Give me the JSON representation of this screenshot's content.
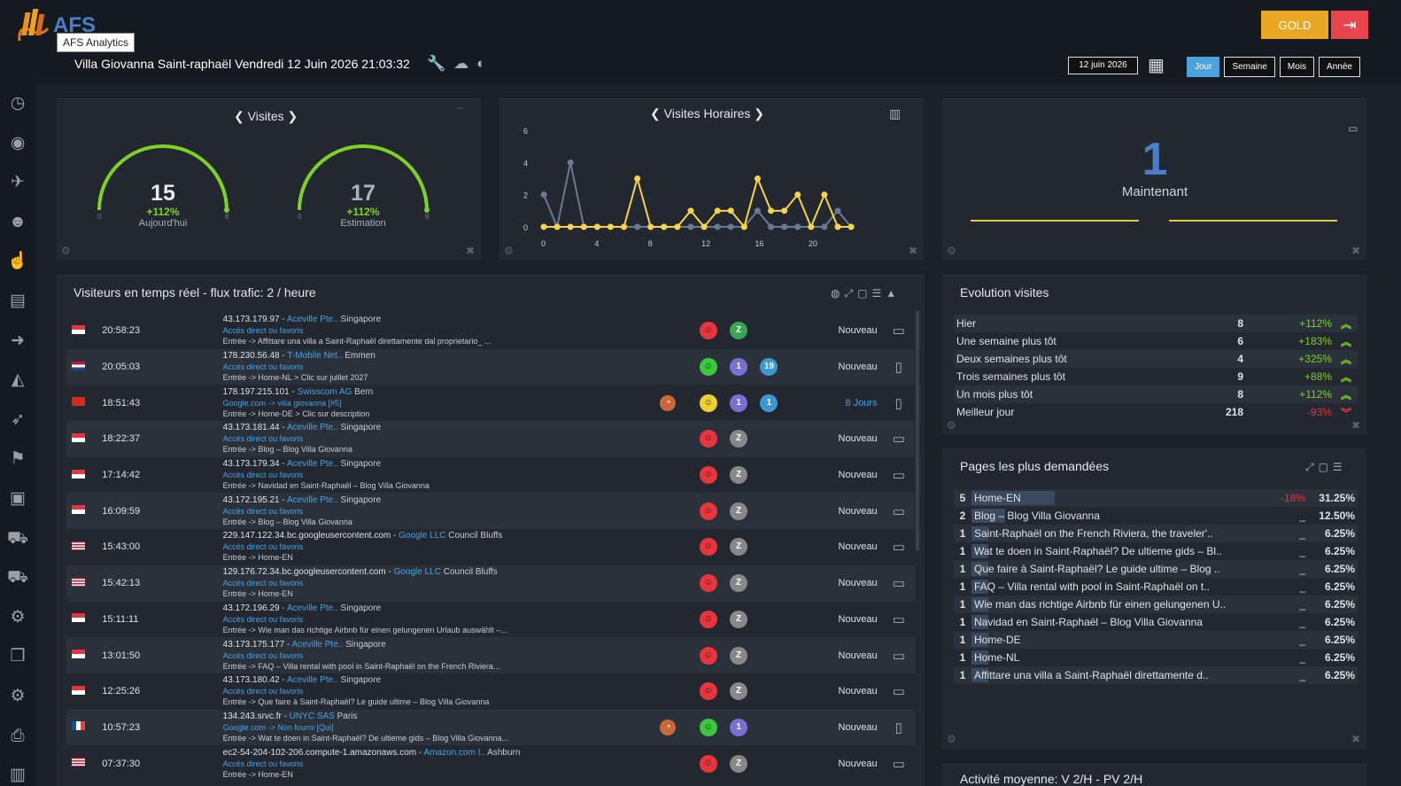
{
  "app": {
    "logo_text": "AFS",
    "tooltip": "AFS Analytics",
    "title": "Villa Giovanna Saint-raphaël Vendredi 12 Juin 2026 21:03:32",
    "gold_label": "GOLD",
    "date": "12 juin 2026",
    "periods": [
      "Jour",
      "Semaine",
      "Mois",
      "Année"
    ]
  },
  "visites": {
    "title": "Visites",
    "today": {
      "value": "15",
      "pct": "+112%",
      "label": "Aujourd'hui",
      "min": "0",
      "max": "8",
      "level": 1.0
    },
    "estimate": {
      "value": "17",
      "pct": "+112%",
      "label": "Estimation",
      "min": "0",
      "max": "8",
      "level": 1.0
    }
  },
  "chart_data": {
    "type": "line",
    "title": "Visites Horaires",
    "x": [
      0,
      1,
      2,
      3,
      4,
      5,
      6,
      7,
      8,
      9,
      10,
      11,
      12,
      13,
      14,
      15,
      16,
      17,
      18,
      19,
      20,
      21,
      22,
      23
    ],
    "xticks": [
      0,
      4,
      8,
      12,
      16,
      20
    ],
    "yticks": [
      0,
      2,
      4,
      6
    ],
    "ylim": [
      0,
      6
    ],
    "series": [
      {
        "color": "#f5d547",
        "values": [
          0,
          0,
          0,
          0,
          0,
          0,
          0,
          3,
          0,
          0,
          0,
          1,
          0,
          1,
          1,
          0,
          3,
          1,
          1,
          2,
          0,
          2,
          0,
          0
        ]
      },
      {
        "color": "#6c7a91",
        "values": [
          2,
          0,
          4,
          0,
          0,
          0,
          0,
          0,
          0,
          0,
          0,
          0,
          0,
          0,
          0,
          0,
          1,
          0,
          0,
          0,
          0,
          0,
          1,
          0
        ]
      }
    ]
  },
  "now": {
    "value": "1",
    "label": "Maintenant"
  },
  "realtime": {
    "title": "Visiteurs en temps réel - flux trafic: 2 / heure",
    "rows": [
      {
        "flag": "sg",
        "time": "20:58:23",
        "ip": "43.173.179.97",
        "isp": "Aceville Pte..",
        "city": "Singapore",
        "ref": "Accès direct ou favoris",
        "entry": "Entrée -> Affittare una villa a Saint-Raphaël direttamente dal proprietario_ ...",
        "extra": "",
        "mood": "red",
        "b1": "Z",
        "b1c": "#3aa655",
        "b2": "",
        "status": "Nouveau",
        "dev": "pc"
      },
      {
        "flag": "nl",
        "time": "20:05:03",
        "ip": "178.230.56.48",
        "isp": "T-Mobile Net..",
        "city": "Emmen",
        "ref": "Accès direct ou favoris",
        "entry": "Entrée -> Home-NL > Clic sur juillet 2027",
        "extra": "",
        "mood": "green",
        "b1": "1",
        "b1c": "#7b6fd6",
        "b2": "19",
        "status": "Nouveau",
        "dev": "mob"
      },
      {
        "flag": "ch",
        "time": "18:51:43",
        "ip": "178.197.215.101",
        "isp": "Swisscom AG",
        "city": "Bern",
        "ref": "Google.com -> villa giovanna [#5]",
        "entry": "Entrée -> Home-DE > Clic sur description",
        "extra": "o",
        "mood": "yellow",
        "b1": "1",
        "b1c": "#7b6fd6",
        "b2": "1",
        "status": "8 Jours",
        "dev": "mob"
      },
      {
        "flag": "sg",
        "time": "18:22:37",
        "ip": "43.173.181.44",
        "isp": "Aceville Pte..",
        "city": "Singapore",
        "ref": "Accès direct ou favoris",
        "entry": "Entrée -> Blog – Blog Villa Giovanna",
        "extra": "",
        "mood": "red",
        "b1": "Z",
        "b1c": "#888",
        "b2": "",
        "status": "Nouveau",
        "dev": "pc"
      },
      {
        "flag": "sg",
        "time": "17:14:42",
        "ip": "43.173.179.34",
        "isp": "Aceville Pte..",
        "city": "Singapore",
        "ref": "Accès direct ou favoris",
        "entry": "Entrée -> Navidad en Saint-Raphaël – Blog Villa Giovanna",
        "extra": "",
        "mood": "red",
        "b1": "Z",
        "b1c": "#888",
        "b2": "",
        "status": "Nouveau",
        "dev": "pc"
      },
      {
        "flag": "sg",
        "time": "16:09:59",
        "ip": "43.172.195.21",
        "isp": "Aceville Pte..",
        "city": "Singapore",
        "ref": "Accès direct ou favoris",
        "entry": "Entrée -> Blog – Blog Villa Giovanna",
        "extra": "",
        "mood": "red",
        "b1": "Z",
        "b1c": "#888",
        "b2": "",
        "status": "Nouveau",
        "dev": "pc"
      },
      {
        "flag": "us",
        "time": "15:43:00",
        "ip": "229.147.122.34.bc.googleusercontent.com",
        "isp": "Google LLC",
        "city": "Council Bluffs",
        "ref": "Accès direct ou favoris",
        "entry": "Entrée -> Home-EN",
        "extra": "",
        "mood": "red",
        "b1": "Z",
        "b1c": "#888",
        "b2": "",
        "status": "Nouveau",
        "dev": "pc"
      },
      {
        "flag": "us",
        "time": "15:42:13",
        "ip": "129.176.72.34.bc.googleusercontent.com",
        "isp": "Google LLC",
        "city": "Council Bluffs",
        "ref": "Accès direct ou favoris",
        "entry": "Entrée -> Home-EN",
        "extra": "",
        "mood": "red",
        "b1": "Z",
        "b1c": "#888",
        "b2": "",
        "status": "Nouveau",
        "dev": "pc"
      },
      {
        "flag": "sg",
        "time": "15:11:11",
        "ip": "43.172.196.29",
        "isp": "Aceville Pte..",
        "city": "Singapore",
        "ref": "Accès direct ou favoris",
        "entry": "Entrée -> Wie man das richtige Airbnb für einen gelungenen Urlaub auswählt –...",
        "extra": "",
        "mood": "red",
        "b1": "Z",
        "b1c": "#888",
        "b2": "",
        "status": "Nouveau",
        "dev": "pc"
      },
      {
        "flag": "sg",
        "time": "13:01:50",
        "ip": "43.173.175.177",
        "isp": "Aceville Pte..",
        "city": "Singapore",
        "ref": "Accès direct ou favoris",
        "entry": "Entrée -> FAQ – Villa rental with pool in Saint-Raphaël on the French Riviera...",
        "extra": "",
        "mood": "red",
        "b1": "Z",
        "b1c": "#888",
        "b2": "",
        "status": "Nouveau",
        "dev": "pc"
      },
      {
        "flag": "sg",
        "time": "12:25:26",
        "ip": "43.173.180.42",
        "isp": "Aceville Pte..",
        "city": "Singapore",
        "ref": "Accès direct ou favoris",
        "entry": "Entrée -> Que faire à Saint-Raphaël? Le guide ultime – Blog Villa Giovanna",
        "extra": "",
        "mood": "red",
        "b1": "Z",
        "b1c": "#888",
        "b2": "",
        "status": "Nouveau",
        "dev": "pc"
      },
      {
        "flag": "fr",
        "time": "10:57:23",
        "ip": "134.243.srvc.fr",
        "isp": "UNYC SAS",
        "city": "Paris",
        "ref": "Google.com -> Non fourni [Qui]",
        "entry": "Entrée -> Wat te doen in Saint-Raphaël? De ultieme gids – Blog Villa Giovanna...",
        "extra": "o",
        "mood": "green",
        "b1": "1",
        "b1c": "#7b6fd6",
        "b2": "",
        "status": "Nouveau",
        "dev": "mob"
      },
      {
        "flag": "us",
        "time": "07:37:30",
        "ip": "ec2-54-204-102-206.compute-1.amazonaws.com",
        "isp": "Amazon.com I..",
        "city": "Ashburn",
        "ref": "Accès direct ou favoris",
        "entry": "Entrée -> Home-EN",
        "extra": "",
        "mood": "red",
        "b1": "Z",
        "b1c": "#888",
        "b2": "",
        "status": "Nouveau",
        "dev": "pc"
      }
    ]
  },
  "evolution": {
    "title": "Evolution visites",
    "rows": [
      {
        "label": "Hier",
        "value": "8",
        "pct": "+112%",
        "up": true
      },
      {
        "label": "Une semaine plus tôt",
        "value": "6",
        "pct": "+183%",
        "up": true
      },
      {
        "label": "Deux semaines plus tôt",
        "value": "4",
        "pct": "+325%",
        "up": true
      },
      {
        "label": "Trois semaines plus tôt",
        "value": "9",
        "pct": "+88%",
        "up": true
      },
      {
        "label": "Un mois plus tôt",
        "value": "8",
        "pct": "+112%",
        "up": true
      },
      {
        "label": "Meilleur jour",
        "value": "218",
        "pct": "-93%",
        "up": false
      }
    ]
  },
  "pages": {
    "title": "Pages les plus demandées",
    "rows": [
      {
        "count": "5",
        "name": "Home-EN",
        "delta": "-18%",
        "pct": "31.25%",
        "share": 0.3125
      },
      {
        "count": "2",
        "name": "Blog – Blog Villa Giovanna",
        "delta": "_",
        "pct": "12.50%",
        "share": 0.125
      },
      {
        "count": "1",
        "name": "Saint-Raphaël on the French Riviera, the traveler'..",
        "delta": "_",
        "pct": "6.25%",
        "share": 0.0625
      },
      {
        "count": "1",
        "name": "Wat te doen in Saint-Raphaël? De ultieme gids – Bl..",
        "delta": "_",
        "pct": "6.25%",
        "share": 0.0625
      },
      {
        "count": "1",
        "name": "Que faire à Saint-Raphaël? Le guide ultime – Blog ..",
        "delta": "_",
        "pct": "6.25%",
        "share": 0.0625
      },
      {
        "count": "1",
        "name": "FAQ – Villa rental with pool in Saint-Raphaël on t..",
        "delta": "_",
        "pct": "6.25%",
        "share": 0.0625
      },
      {
        "count": "1",
        "name": "Wie man das richtige Airbnb für einen gelungenen U..",
        "delta": "_",
        "pct": "6.25%",
        "share": 0.0625
      },
      {
        "count": "1",
        "name": "Navidad en Saint-Raphaël – Blog Villa Giovanna",
        "delta": "_",
        "pct": "6.25%",
        "share": 0.0625
      },
      {
        "count": "1",
        "name": "Home-DE",
        "delta": "_",
        "pct": "6.25%",
        "share": 0.0625
      },
      {
        "count": "1",
        "name": "Home-NL",
        "delta": "_",
        "pct": "6.25%",
        "share": 0.0625
      },
      {
        "count": "1",
        "name": "Affittare una villa a Saint-Raphaël direttamente d..",
        "delta": "_",
        "pct": "6.25%",
        "share": 0.0625
      }
    ]
  },
  "bottom_panel": {
    "title": "Activité moyenne: V 2/H - PV 2/H"
  },
  "icons": {
    "sidebar": [
      "clock-icon",
      "dashboard-icon",
      "plane-icon",
      "users-icon",
      "hand-pointer-icon",
      "document-icon",
      "arrow-circle-icon",
      "area-chart-icon",
      "rocket-icon",
      "flag-icon",
      "briefcase-icon",
      "cart-icon",
      "cart-plus-icon",
      "gear-icon",
      "cubes-icon",
      "gears-icon",
      "printer-icon",
      "book-icon"
    ]
  }
}
